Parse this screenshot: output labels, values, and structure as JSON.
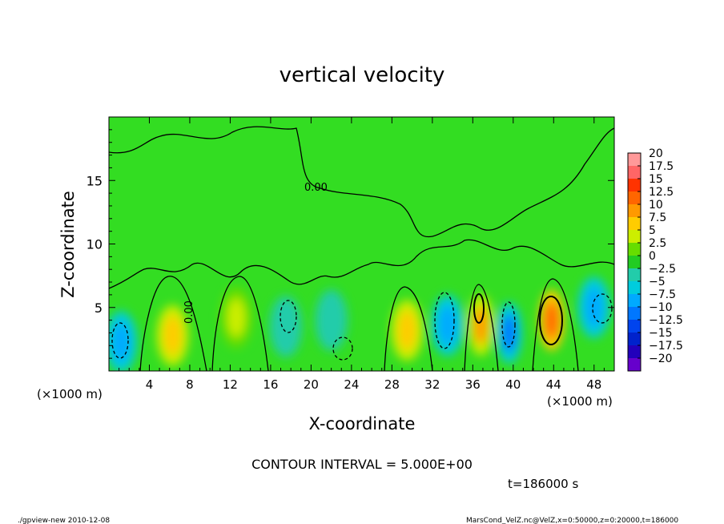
{
  "chart_data": {
    "type": "heatmap",
    "title": "vertical velocity",
    "xlabel": "X-coordinate",
    "ylabel": "Z-coordinate",
    "x_unit_left": "(×1000 m)",
    "x_unit_right": "(×1000 m)",
    "xlim": [
      0,
      50
    ],
    "ylim": [
      0,
      20
    ],
    "x_ticks": [
      4,
      8,
      12,
      16,
      20,
      24,
      28,
      32,
      36,
      40,
      44,
      48
    ],
    "y_ticks": [
      5,
      10,
      15
    ],
    "contour_interval_label": "CONTOUR INTERVAL = 5.000E+00",
    "contour_label": "0.00",
    "time_label": "t=186000 s",
    "colorbar": {
      "levels": [
        "20",
        "17.5",
        "15",
        "12.5",
        "10",
        "7.5",
        "5",
        "2.5",
        "0",
        "-2.5",
        "-5",
        "-7.5",
        "-10",
        "-12.5",
        "-15",
        "-17.5",
        "-20"
      ],
      "colors": [
        "#ff9999",
        "#ff6666",
        "#ff3300",
        "#ff6600",
        "#ff9900",
        "#ffcc00",
        "#ccee00",
        "#66dd00",
        "#22cc22",
        "#22ccaa",
        "#00ccdd",
        "#00aaff",
        "#0077ff",
        "#0044ee",
        "#0022cc",
        "#2200bb",
        "#6600cc"
      ]
    },
    "anomalies": [
      {
        "x": 1.2,
        "z": 2.3,
        "value": -7.5
      },
      {
        "x": 6.3,
        "z": 2.8,
        "value": 7.5
      },
      {
        "x": 12.6,
        "z": 4.2,
        "value": 6
      },
      {
        "x": 17.5,
        "z": 3.5,
        "value": -3
      },
      {
        "x": 22,
        "z": 4,
        "value": -3
      },
      {
        "x": 29.5,
        "z": 3.2,
        "value": 7.5
      },
      {
        "x": 33.5,
        "z": 3.6,
        "value": -8
      },
      {
        "x": 36.8,
        "z": 3.6,
        "value": 10
      },
      {
        "x": 39.6,
        "z": 3,
        "value": -10
      },
      {
        "x": 43.8,
        "z": 4,
        "value": 12
      },
      {
        "x": 48,
        "z": 5,
        "value": -8
      }
    ],
    "grid": false,
    "legend": "right"
  },
  "footer": {
    "left": "./gpview-new   2010-12-08",
    "right": "MarsCond_VelZ.nc@VelZ,x=0:50000,z=0:20000,t=186000"
  }
}
